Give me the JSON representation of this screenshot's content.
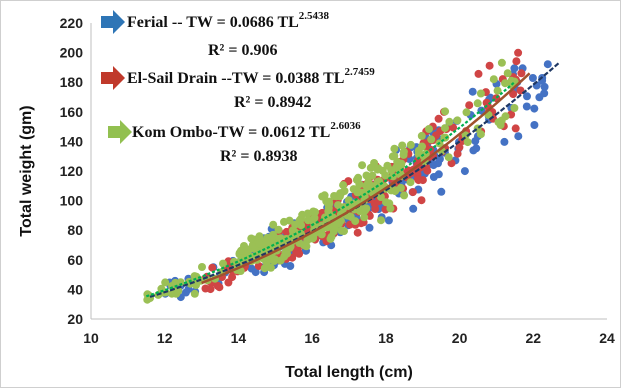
{
  "chart_data": {
    "type": "scatter",
    "title": "",
    "xlabel": "Total length (cm)",
    "ylabel": "Total weight (gm)",
    "xlim": [
      10,
      24
    ],
    "ylim": [
      20,
      220
    ],
    "xticks": [
      "10",
      "12",
      "14",
      "16",
      "18",
      "20",
      "22",
      "24"
    ],
    "yticks": [
      "20",
      "40",
      "60",
      "80",
      "100",
      "120",
      "140",
      "160",
      "180",
      "200",
      "220"
    ],
    "grid": false,
    "legend_position": "top-left",
    "series": [
      {
        "name": "Ferial",
        "color": "#4472c4",
        "marker_icon": "arrow-right-icon",
        "equation": "Ferial -- TW = 0.0686 TL",
        "exponent": "2.5438",
        "r2": "R² = 0.906",
        "fit": {
          "a": 0.0686,
          "b": 2.5438,
          "x_range": [
            11.6,
            22.7
          ],
          "color": "#1f3864"
        },
        "x_range": [
          12.0,
          22.7
        ]
      },
      {
        "name": "El-Sail Drain",
        "color": "#d04545",
        "marker_icon": "arrow-right-icon",
        "equation": "El-Sail Drain --TW = 0.0388 TL",
        "exponent": "2.7459",
        "r2": "R² = 0.8942",
        "fit": {
          "a": 0.0388,
          "b": 2.7459,
          "x_range": [
            13.0,
            21.9
          ],
          "color": "#a0522d"
        },
        "x_range": [
          13.0,
          22.0
        ]
      },
      {
        "name": "Kom Ombo",
        "color": "#9bc055",
        "marker_icon": "arrow-right-icon",
        "equation": "Kom Ombo-TW = 0.0612 TL",
        "exponent": "2.6036",
        "r2": "R² = 0.8938",
        "fit": {
          "a": 0.0612,
          "b": 2.6036,
          "x_range": [
            11.5,
            21.5
          ],
          "color": "#00b050"
        },
        "x_range": [
          11.5,
          21.5
        ]
      }
    ]
  }
}
